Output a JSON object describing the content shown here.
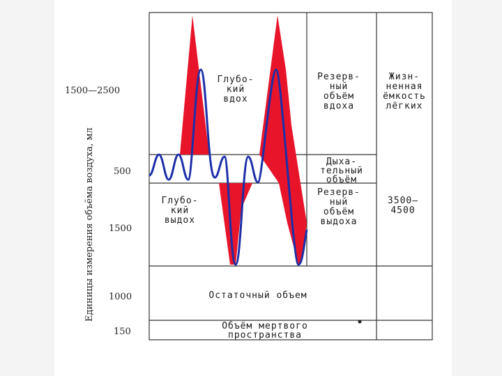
{
  "y_axis_label": "Единицы измерения объёма воздуха, мл",
  "y_ticks": [
    "1500—2500",
    "500",
    "1500",
    "1000",
    "150"
  ],
  "curve_labels": {
    "deep_inhale": [
      "Глубо-",
      "кий",
      "вдох"
    ],
    "deep_exhale": [
      "Глубо-",
      "кий",
      "выдох"
    ]
  },
  "columns": {
    "inspiratory_reserve": [
      "Резерв-",
      "ный",
      "объём",
      "вдоха"
    ],
    "tidal_volume": [
      "Дыха-",
      "тельный",
      "объём"
    ],
    "expiratory_reserve": [
      "Резерв-",
      "ный",
      "объём",
      "выдоха"
    ],
    "vital_capacity": [
      "Жизн-",
      "ненная",
      "ёмкость",
      "лёгких"
    ],
    "vital_capacity_value": [
      "3500—",
      "4500"
    ]
  },
  "rows": {
    "residual_volume": "Остаточный объем",
    "dead_space": [
      "Объём мертвого",
      "пространства"
    ]
  },
  "colors": {
    "red_band": "#e8142a",
    "blue_line": "#1c2fa8",
    "frame": "#333333"
  }
}
